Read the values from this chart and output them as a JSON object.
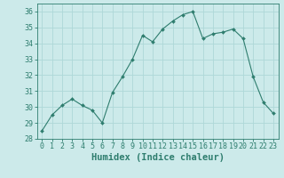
{
  "x": [
    0,
    1,
    2,
    3,
    4,
    5,
    6,
    7,
    8,
    9,
    10,
    11,
    12,
    13,
    14,
    15,
    16,
    17,
    18,
    19,
    20,
    21,
    22,
    23
  ],
  "y": [
    28.5,
    29.5,
    30.1,
    30.5,
    30.1,
    29.8,
    29.0,
    30.9,
    31.9,
    33.0,
    34.5,
    34.1,
    34.9,
    35.4,
    35.8,
    36.0,
    34.3,
    34.6,
    34.7,
    34.9,
    34.3,
    31.9,
    30.3,
    29.6
  ],
  "line_color": "#2e7d6e",
  "marker": "D",
  "marker_size": 2.0,
  "bg_color": "#cceaea",
  "grid_color": "#aed8d8",
  "xlabel": "Humidex (Indice chaleur)",
  "ylim": [
    28,
    36.5
  ],
  "xlim": [
    -0.5,
    23.5
  ],
  "yticks": [
    28,
    29,
    30,
    31,
    32,
    33,
    34,
    35,
    36
  ],
  "xticks": [
    0,
    1,
    2,
    3,
    4,
    5,
    6,
    7,
    8,
    9,
    10,
    11,
    12,
    13,
    14,
    15,
    16,
    17,
    18,
    19,
    20,
    21,
    22,
    23
  ],
  "axis_color": "#2e7d6e",
  "tick_color": "#2e7d6e",
  "label_fontsize": 7.5,
  "tick_fontsize": 6.0
}
